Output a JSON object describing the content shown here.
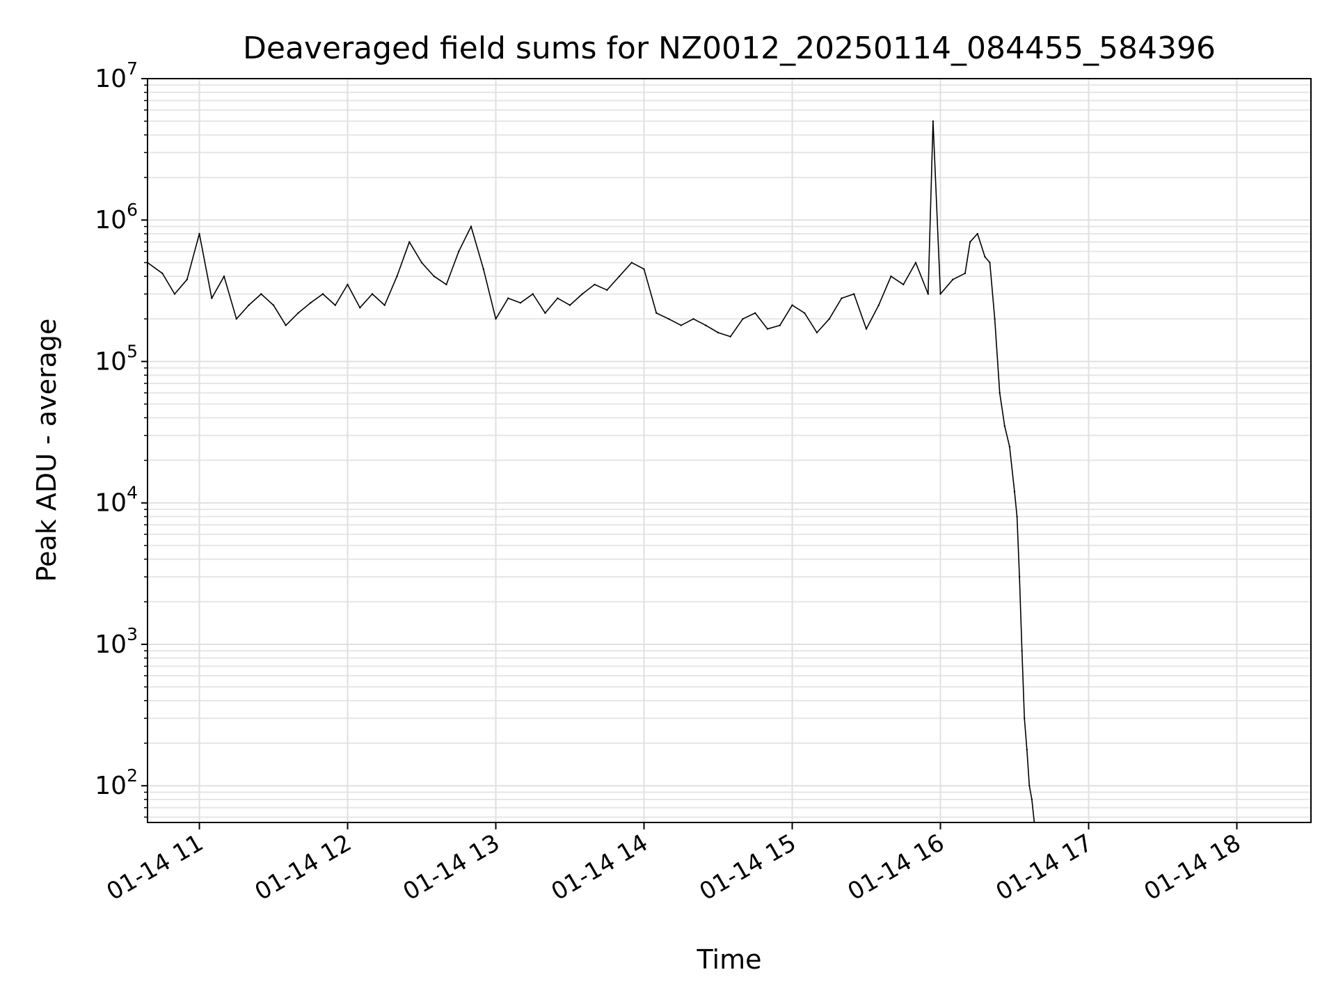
{
  "chart_data": {
    "type": "line",
    "title": "Deaveraged field sums for NZ0012_20250114_084455_584396",
    "xlabel": "Time",
    "ylabel": "Peak ADU - average",
    "yscale": "log",
    "grid": true,
    "legend": "none",
    "xlim": [
      "2025-01-14 10:39",
      "2025-01-14 18:30"
    ],
    "ylim": [
      55,
      10000000
    ],
    "xticks": [
      {
        "value": "2025-01-14 11:00",
        "label": "01-14 11"
      },
      {
        "value": "2025-01-14 12:00",
        "label": "01-14 12"
      },
      {
        "value": "2025-01-14 13:00",
        "label": "01-14 13"
      },
      {
        "value": "2025-01-14 14:00",
        "label": "01-14 14"
      },
      {
        "value": "2025-01-14 15:00",
        "label": "01-14 15"
      },
      {
        "value": "2025-01-14 16:00",
        "label": "01-14 16"
      },
      {
        "value": "2025-01-14 17:00",
        "label": "01-14 17"
      },
      {
        "value": "2025-01-14 18:00",
        "label": "01-14 18"
      }
    ],
    "yticks": [
      {
        "value": 100,
        "base": "10",
        "exp": "2"
      },
      {
        "value": 1000,
        "base": "10",
        "exp": "3"
      },
      {
        "value": 10000,
        "base": "10",
        "exp": "4"
      },
      {
        "value": 100000,
        "base": "10",
        "exp": "5"
      },
      {
        "value": 1000000,
        "base": "10",
        "exp": "6"
      },
      {
        "value": 10000000,
        "base": "10",
        "exp": "7"
      }
    ],
    "series": [
      {
        "color": "#000000",
        "x": [
          "2025-01-14 10:39",
          "2025-01-14 10:45",
          "2025-01-14 10:50",
          "2025-01-14 10:55",
          "2025-01-14 11:00",
          "2025-01-14 11:05",
          "2025-01-14 11:10",
          "2025-01-14 11:15",
          "2025-01-14 11:20",
          "2025-01-14 11:25",
          "2025-01-14 11:30",
          "2025-01-14 11:35",
          "2025-01-14 11:40",
          "2025-01-14 11:45",
          "2025-01-14 11:50",
          "2025-01-14 11:55",
          "2025-01-14 12:00",
          "2025-01-14 12:05",
          "2025-01-14 12:10",
          "2025-01-14 12:15",
          "2025-01-14 12:20",
          "2025-01-14 12:25",
          "2025-01-14 12:30",
          "2025-01-14 12:35",
          "2025-01-14 12:40",
          "2025-01-14 12:45",
          "2025-01-14 12:50",
          "2025-01-14 12:55",
          "2025-01-14 13:00",
          "2025-01-14 13:05",
          "2025-01-14 13:10",
          "2025-01-14 13:15",
          "2025-01-14 13:20",
          "2025-01-14 13:25",
          "2025-01-14 13:30",
          "2025-01-14 13:35",
          "2025-01-14 13:40",
          "2025-01-14 13:45",
          "2025-01-14 13:50",
          "2025-01-14 13:55",
          "2025-01-14 14:00",
          "2025-01-14 14:05",
          "2025-01-14 14:10",
          "2025-01-14 14:15",
          "2025-01-14 14:20",
          "2025-01-14 14:25",
          "2025-01-14 14:30",
          "2025-01-14 14:35",
          "2025-01-14 14:40",
          "2025-01-14 14:45",
          "2025-01-14 14:50",
          "2025-01-14 14:55",
          "2025-01-14 15:00",
          "2025-01-14 15:05",
          "2025-01-14 15:10",
          "2025-01-14 15:15",
          "2025-01-14 15:20",
          "2025-01-14 15:25",
          "2025-01-14 15:30",
          "2025-01-14 15:35",
          "2025-01-14 15:40",
          "2025-01-14 15:45",
          "2025-01-14 15:50",
          "2025-01-14 15:55",
          "2025-01-14 15:57",
          "2025-01-14 16:00",
          "2025-01-14 16:05",
          "2025-01-14 16:10",
          "2025-01-14 16:12",
          "2025-01-14 16:15",
          "2025-01-14 16:18",
          "2025-01-14 16:20",
          "2025-01-14 16:22",
          "2025-01-14 16:24",
          "2025-01-14 16:26",
          "2025-01-14 16:28",
          "2025-01-14 16:30",
          "2025-01-14 16:31",
          "2025-01-14 16:32",
          "2025-01-14 16:33",
          "2025-01-14 16:34",
          "2025-01-14 16:35",
          "2025-01-14 16:36",
          "2025-01-14 16:37",
          "2025-01-14 16:38"
        ],
        "y": [
          500000,
          420000,
          300000,
          380000,
          800000,
          280000,
          400000,
          200000,
          250000,
          300000,
          250000,
          180000,
          220000,
          260000,
          300000,
          250000,
          350000,
          240000,
          300000,
          250000,
          400000,
          700000,
          500000,
          400000,
          350000,
          600000,
          900000,
          450000,
          200000,
          280000,
          260000,
          300000,
          220000,
          280000,
          250000,
          300000,
          350000,
          320000,
          400000,
          500000,
          450000,
          220000,
          200000,
          180000,
          200000,
          180000,
          160000,
          150000,
          200000,
          220000,
          170000,
          180000,
          250000,
          220000,
          160000,
          200000,
          280000,
          300000,
          170000,
          250000,
          400000,
          350000,
          500000,
          300000,
          5000000,
          300000,
          380000,
          420000,
          700000,
          800000,
          550000,
          500000,
          200000,
          60000,
          35000,
          25000,
          12000,
          8000,
          3000,
          900,
          300,
          180,
          100,
          80,
          55
        ]
      }
    ]
  }
}
